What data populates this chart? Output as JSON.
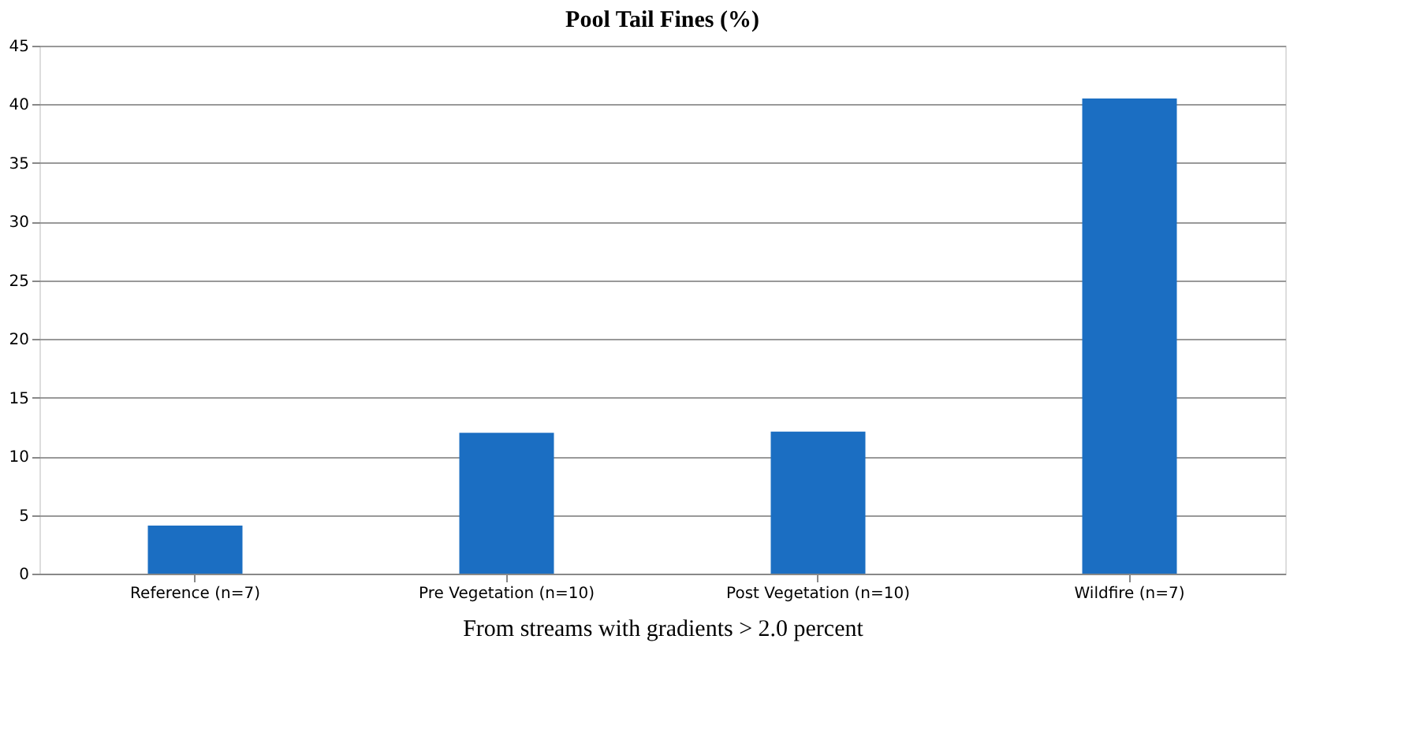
{
  "chart_data": {
    "type": "bar",
    "title": "Pool Tail Fines (%)",
    "xlabel": "From streams with gradients > 2.0 percent",
    "categories": [
      "Reference (n=7)",
      "Pre Vegetation (n=10)",
      "Post Vegetation (n=10)",
      "Wildfire (n=7)"
    ],
    "values": [
      4.1,
      12.0,
      12.1,
      40.5
    ],
    "color": "#1b6ec2",
    "ylim": [
      0,
      45
    ],
    "yticks": [
      0,
      5,
      10,
      15,
      20,
      25,
      30,
      35,
      40,
      45
    ],
    "grid": "y"
  }
}
